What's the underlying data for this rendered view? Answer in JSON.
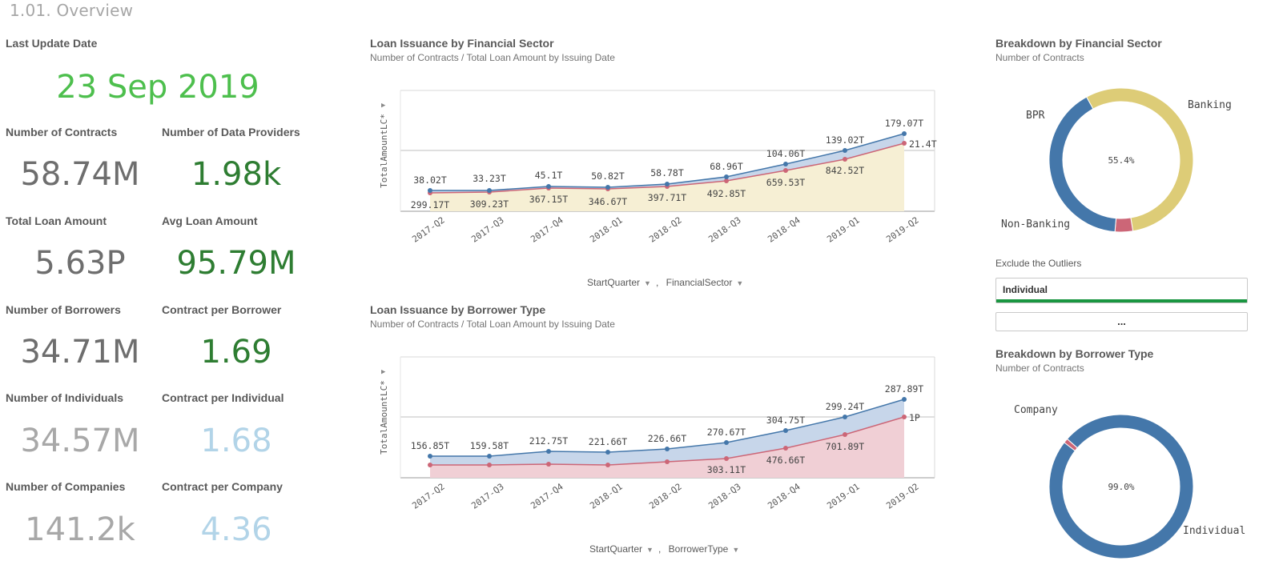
{
  "sheet_title": "1.01. Overview",
  "kpis": {
    "last_update_label": "Last Update Date",
    "last_update_value": "23 Sep 2019",
    "contracts_label": "Number of Contracts",
    "contracts_value": "58.74M",
    "providers_label": "Number of Data Providers",
    "providers_value": "1.98k",
    "loan_amount_label": "Total Loan Amount",
    "loan_amount_value": "5.63P",
    "avg_loan_label": "Avg Loan Amount",
    "avg_loan_value": "95.79M",
    "borrowers_label": "Number of Borrowers",
    "borrowers_value": "34.71M",
    "contract_per_borrower_label": "Contract per Borrower",
    "contract_per_borrower_value": "1.69",
    "individuals_label": "Number of Individuals",
    "individuals_value": "34.57M",
    "contract_per_individual_label": "Contract per Individual",
    "contract_per_individual_value": "1.68",
    "companies_label": "Number of Companies",
    "companies_value": "141.2k",
    "contract_per_company_label": "Contract per Company",
    "contract_per_company_value": "4.36"
  },
  "colors": {
    "green_bright": "#4dbf4d",
    "green_dark": "#2e7d32",
    "gray_dark": "#6e6e6e",
    "gray_light": "#a8a8a8",
    "blue_light": "#b2d4e8",
    "blue": "#4477aa",
    "red": "#cc6677",
    "yellow": "#ddcc77",
    "filter_green": "#1a9641"
  },
  "sector_chart": {
    "title": "Loan Issuance by Financial Sector",
    "subtitle": "Number of Contracts / Total Loan Amount by Issuing Date",
    "ylabel": "TotalAmountLC*",
    "dim1": "StartQuarter",
    "dim_sep": ",",
    "dim2": "FinancialSector"
  },
  "borrower_chart": {
    "title": "Loan Issuance by Borrower Type",
    "subtitle": "Number of Contracts / Total Loan Amount by Issuing Date",
    "ylabel": "TotalAmountLC*",
    "dim1": "StartQuarter",
    "dim_sep": ",",
    "dim2": "BorrowerType"
  },
  "sector_donut": {
    "title": "Breakdown by Financial Sector",
    "subtitle": "Number of Contracts",
    "center_label": "55.4%",
    "labels": [
      "Banking",
      "BPR",
      "Non-Banking"
    ]
  },
  "borrower_donut": {
    "title": "Breakdown by Borrower Type",
    "subtitle": "Number of Contracts",
    "center_label": "99.0%",
    "labels": [
      "Company",
      "Individual"
    ]
  },
  "filter": {
    "title": "Exclude the Outliers",
    "selected": "Individual",
    "more": "..."
  },
  "chart_data": [
    {
      "type": "area",
      "categories": [
        "2017-Q2",
        "2017-Q3",
        "2017-Q4",
        "2018-Q1",
        "2018-Q2",
        "2018-Q3",
        "2018-Q4",
        "2019-Q1",
        "2019-Q2"
      ],
      "ylabel": "TotalAmountLC*",
      "series": [
        {
          "name": "",
          "color": "#4477aa",
          "values": [
            38.02,
            33.23,
            45.1,
            50.82,
            58.78,
            68.96,
            104.06,
            139.02,
            179.07
          ],
          "labels": [
            "38.02T",
            "33.23T",
            "45.1T",
            "50.82T",
            "58.78T",
            "68.96T",
            "104.06T",
            "139.02T",
            "179.07T"
          ]
        },
        {
          "name": "",
          "color": "#cc6677",
          "values": [
            299.17,
            309.23,
            367.15,
            346.67,
            397.71,
            492.85,
            659.53,
            842.52,
            1000
          ],
          "labels": [
            "299.17T",
            "309.23T",
            "367.15T",
            "346.67T",
            "397.71T",
            "492.85T",
            "659.53T",
            "842.52T",
            ""
          ]
        },
        {
          "name": "",
          "color": "#ddcc77",
          "end_label": "21.4T"
        }
      ]
    },
    {
      "type": "area",
      "categories": [
        "2017-Q2",
        "2017-Q3",
        "2017-Q4",
        "2018-Q1",
        "2018-Q2",
        "2018-Q3",
        "2018-Q4",
        "2019-Q1",
        "2019-Q2"
      ],
      "ylabel": "TotalAmountLC*",
      "series": [
        {
          "name": "",
          "color": "#4477aa",
          "values": [
            156.85,
            159.58,
            212.75,
            221.66,
            226.66,
            270.67,
            304.75,
            299.24,
            287.89
          ],
          "labels": [
            "156.85T",
            "159.58T",
            "212.75T",
            "221.66T",
            "226.66T",
            "270.67T",
            "304.75T",
            "299.24T",
            "287.89T"
          ]
        },
        {
          "name": "",
          "color": "#cc6677",
          "values": [
            null,
            null,
            null,
            null,
            null,
            303.11,
            476.66,
            701.89,
            1000
          ],
          "labels": [
            "",
            "",
            "",
            "",
            "",
            "303.11T",
            "476.66T",
            "701.89T",
            "1P"
          ]
        }
      ]
    },
    {
      "type": "pie",
      "title": "Breakdown by Financial Sector",
      "categories": [
        "Banking",
        "BPR",
        "Non-Banking"
      ],
      "values": [
        55.4,
        4.0,
        40.6
      ]
    },
    {
      "type": "pie",
      "title": "Breakdown by Borrower Type",
      "categories": [
        "Individual",
        "Company"
      ],
      "values": [
        99.0,
        1.0
      ]
    }
  ]
}
